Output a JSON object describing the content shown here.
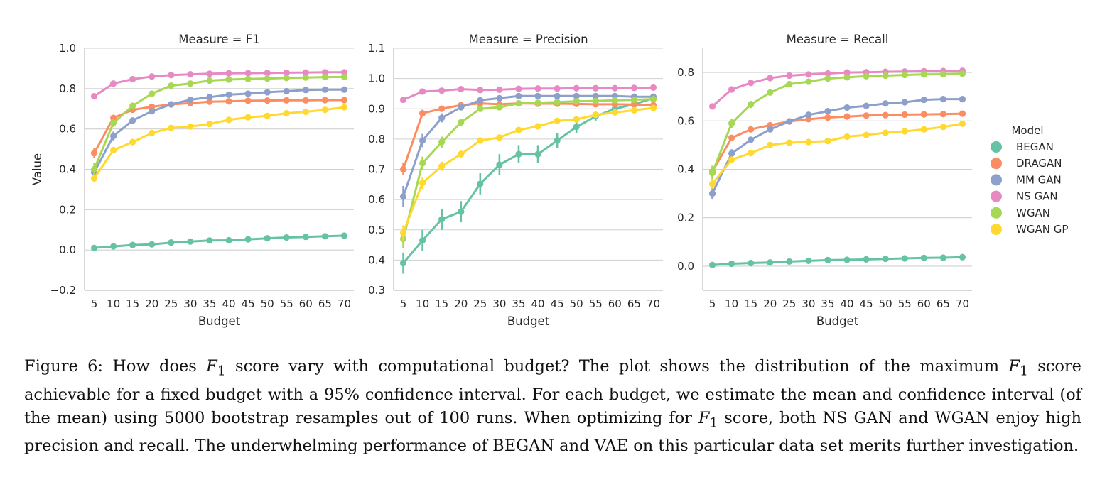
{
  "chart_data": {
    "type": "line",
    "title": "",
    "xlabel": "Budget",
    "ylabel": "Value",
    "categories": [
      5,
      10,
      15,
      20,
      25,
      30,
      35,
      40,
      45,
      50,
      55,
      60,
      65,
      70
    ],
    "legend": {
      "title": "Model",
      "placement": "right",
      "entries": [
        "BEGAN",
        "DRAGAN",
        "MM GAN",
        "NS GAN",
        "WGAN",
        "WGAN GP"
      ]
    },
    "colors": {
      "BEGAN": "#66c2a5",
      "DRAGAN": "#fc8d62",
      "MM GAN": "#8da0cb",
      "NS GAN": "#e78ac3",
      "WGAN": "#a6d854",
      "WGAN GP": "#ffd92f"
    },
    "panels": [
      {
        "title": "Measure = F1",
        "ylim": [
          -0.2,
          1.0
        ],
        "yticks": [
          "−0.2",
          "0.0",
          "0.2",
          "0.4",
          "0.6",
          "0.8",
          "1.0"
        ],
        "yticks_values": [
          -0.2,
          0.0,
          0.2,
          0.4,
          0.6,
          0.8,
          1.0
        ],
        "show_ylabel": true,
        "series": [
          {
            "name": "BEGAN",
            "values": [
              0.01,
              0.018,
              0.025,
              0.028,
              0.037,
              0.042,
              0.047,
              0.048,
              0.053,
              0.058,
              0.062,
              0.065,
              0.068,
              0.071
            ],
            "err": [
              0.005,
              0.005,
              0.005,
              0.005,
              0.005,
              0.005,
              0.005,
              0.005,
              0.005,
              0.005,
              0.005,
              0.005,
              0.005,
              0.005
            ]
          },
          {
            "name": "DRAGAN",
            "values": [
              0.48,
              0.655,
              0.695,
              0.71,
              0.722,
              0.728,
              0.735,
              0.737,
              0.74,
              0.741,
              0.742,
              0.742,
              0.743,
              0.743
            ],
            "err": [
              0.025,
              0.012,
              0.008,
              0.006,
              0.005,
              0.005,
              0.004,
              0.004,
              0.004,
              0.003,
              0.003,
              0.003,
              0.003,
              0.003
            ]
          },
          {
            "name": "MM GAN",
            "values": [
              0.385,
              0.565,
              0.642,
              0.688,
              0.722,
              0.745,
              0.758,
              0.77,
              0.775,
              0.782,
              0.787,
              0.793,
              0.795,
              0.795
            ],
            "err": [
              0.03,
              0.022,
              0.015,
              0.01,
              0.008,
              0.006,
              0.005,
              0.005,
              0.004,
              0.004,
              0.004,
              0.003,
              0.003,
              0.003
            ]
          },
          {
            "name": "NS GAN",
            "values": [
              0.762,
              0.825,
              0.847,
              0.86,
              0.867,
              0.871,
              0.874,
              0.876,
              0.877,
              0.878,
              0.879,
              0.88,
              0.881,
              0.881
            ],
            "err": [
              0.01,
              0.006,
              0.004,
              0.003,
              0.003,
              0.002,
              0.002,
              0.002,
              0.002,
              0.002,
              0.002,
              0.002,
              0.002,
              0.002
            ]
          },
          {
            "name": "WGAN",
            "values": [
              0.4,
              0.63,
              0.715,
              0.775,
              0.815,
              0.825,
              0.84,
              0.845,
              0.848,
              0.85,
              0.853,
              0.855,
              0.857,
              0.858
            ],
            "err": [
              0.03,
              0.02,
              0.015,
              0.01,
              0.008,
              0.006,
              0.005,
              0.005,
              0.004,
              0.004,
              0.004,
              0.003,
              0.003,
              0.003
            ]
          },
          {
            "name": "WGAN GP",
            "values": [
              0.355,
              0.495,
              0.535,
              0.58,
              0.605,
              0.612,
              0.625,
              0.645,
              0.658,
              0.665,
              0.678,
              0.685,
              0.695,
              0.708
            ],
            "err": [
              0.02,
              0.015,
              0.012,
              0.01,
              0.008,
              0.008,
              0.007,
              0.007,
              0.006,
              0.006,
              0.006,
              0.005,
              0.005,
              0.005
            ]
          }
        ]
      },
      {
        "title": "Measure = Precision",
        "ylim": [
          0.3,
          1.1
        ],
        "yticks": [
          "0.3",
          "0.4",
          "0.5",
          "0.6",
          "0.7",
          "0.8",
          "0.9",
          "1.0",
          "1.1"
        ],
        "yticks_values": [
          0.3,
          0.4,
          0.5,
          0.6,
          0.7,
          0.8,
          0.9,
          1.0,
          1.1
        ],
        "show_ylabel": false,
        "series": [
          {
            "name": "BEGAN",
            "values": [
              0.39,
              0.465,
              0.535,
              0.56,
              0.652,
              0.715,
              0.75,
              0.75,
              0.795,
              0.84,
              0.875,
              0.9,
              0.915,
              0.935
            ],
            "err": [
              0.035,
              0.035,
              0.035,
              0.035,
              0.035,
              0.035,
              0.03,
              0.03,
              0.025,
              0.02,
              0.015,
              0.012,
              0.01,
              0.01
            ]
          },
          {
            "name": "DRAGAN",
            "values": [
              0.7,
              0.885,
              0.9,
              0.912,
              0.918,
              0.915,
              0.918,
              0.917,
              0.917,
              0.916,
              0.915,
              0.915,
              0.914,
              0.912
            ],
            "err": [
              0.02,
              0.012,
              0.008,
              0.006,
              0.005,
              0.004,
              0.004,
              0.004,
              0.003,
              0.003,
              0.003,
              0.003,
              0.003,
              0.003
            ]
          },
          {
            "name": "MM GAN",
            "values": [
              0.61,
              0.795,
              0.87,
              0.905,
              0.928,
              0.935,
              0.942,
              0.942,
              0.942,
              0.942,
              0.942,
              0.942,
              0.94,
              0.94
            ],
            "err": [
              0.035,
              0.022,
              0.015,
              0.01,
              0.008,
              0.006,
              0.005,
              0.005,
              0.004,
              0.004,
              0.004,
              0.003,
              0.003,
              0.003
            ]
          },
          {
            "name": "NS GAN",
            "values": [
              0.93,
              0.957,
              0.96,
              0.965,
              0.962,
              0.963,
              0.966,
              0.967,
              0.967,
              0.968,
              0.968,
              0.968,
              0.969,
              0.97
            ],
            "err": [
              0.01,
              0.006,
              0.004,
              0.003,
              0.003,
              0.002,
              0.002,
              0.002,
              0.002,
              0.002,
              0.002,
              0.002,
              0.002,
              0.002
            ]
          },
          {
            "name": "WGAN",
            "values": [
              0.47,
              0.72,
              0.79,
              0.855,
              0.9,
              0.905,
              0.918,
              0.92,
              0.922,
              0.925,
              0.926,
              0.928,
              0.93,
              0.932
            ],
            "err": [
              0.03,
              0.022,
              0.018,
              0.012,
              0.008,
              0.006,
              0.005,
              0.005,
              0.004,
              0.004,
              0.004,
              0.003,
              0.003,
              0.003
            ]
          },
          {
            "name": "WGAN GP",
            "values": [
              0.49,
              0.655,
              0.71,
              0.75,
              0.795,
              0.805,
              0.83,
              0.842,
              0.86,
              0.865,
              0.88,
              0.888,
              0.895,
              0.903
            ],
            "err": [
              0.025,
              0.02,
              0.015,
              0.012,
              0.01,
              0.009,
              0.008,
              0.007,
              0.007,
              0.006,
              0.006,
              0.005,
              0.005,
              0.005
            ]
          }
        ]
      },
      {
        "title": "Measure = Recall",
        "ylim": [
          -0.1,
          0.9
        ],
        "yticks": [
          "0.0",
          "0.2",
          "0.4",
          "0.6",
          "0.8"
        ],
        "yticks_values": [
          0.0,
          0.2,
          0.4,
          0.6,
          0.8
        ],
        "show_ylabel": false,
        "series": [
          {
            "name": "BEGAN",
            "values": [
              0.005,
              0.01,
              0.013,
              0.015,
              0.019,
              0.022,
              0.025,
              0.026,
              0.028,
              0.03,
              0.032,
              0.034,
              0.035,
              0.037
            ],
            "err": [
              0.004,
              0.004,
              0.004,
              0.004,
              0.004,
              0.004,
              0.004,
              0.004,
              0.004,
              0.004,
              0.004,
              0.004,
              0.004,
              0.004
            ]
          },
          {
            "name": "DRAGAN",
            "values": [
              0.39,
              0.53,
              0.565,
              0.582,
              0.598,
              0.607,
              0.614,
              0.618,
              0.622,
              0.624,
              0.626,
              0.627,
              0.628,
              0.63
            ],
            "err": [
              0.02,
              0.012,
              0.008,
              0.006,
              0.005,
              0.005,
              0.004,
              0.004,
              0.004,
              0.003,
              0.003,
              0.003,
              0.003,
              0.003
            ]
          },
          {
            "name": "MM GAN",
            "values": [
              0.3,
              0.465,
              0.522,
              0.565,
              0.598,
              0.625,
              0.64,
              0.655,
              0.662,
              0.672,
              0.677,
              0.687,
              0.69,
              0.69
            ],
            "err": [
              0.025,
              0.018,
              0.012,
              0.01,
              0.008,
              0.006,
              0.005,
              0.005,
              0.004,
              0.004,
              0.004,
              0.003,
              0.003,
              0.003
            ]
          },
          {
            "name": "NS GAN",
            "values": [
              0.66,
              0.73,
              0.757,
              0.777,
              0.787,
              0.792,
              0.796,
              0.8,
              0.801,
              0.803,
              0.804,
              0.805,
              0.806,
              0.807
            ],
            "err": [
              0.01,
              0.008,
              0.005,
              0.004,
              0.003,
              0.003,
              0.002,
              0.002,
              0.002,
              0.002,
              0.002,
              0.002,
              0.002,
              0.002
            ]
          },
          {
            "name": "WGAN",
            "values": [
              0.385,
              0.59,
              0.668,
              0.717,
              0.752,
              0.762,
              0.775,
              0.78,
              0.785,
              0.787,
              0.79,
              0.792,
              0.793,
              0.795
            ],
            "err": [
              0.03,
              0.02,
              0.015,
              0.01,
              0.008,
              0.006,
              0.005,
              0.005,
              0.004,
              0.004,
              0.004,
              0.003,
              0.003,
              0.003
            ]
          },
          {
            "name": "WGAN GP",
            "values": [
              0.34,
              0.44,
              0.467,
              0.5,
              0.51,
              0.513,
              0.517,
              0.535,
              0.542,
              0.551,
              0.557,
              0.565,
              0.575,
              0.588
            ],
            "err": [
              0.02,
              0.012,
              0.01,
              0.008,
              0.006,
              0.006,
              0.005,
              0.005,
              0.005,
              0.005,
              0.004,
              0.004,
              0.004,
              0.004
            ]
          }
        ]
      }
    ]
  },
  "caption": {
    "label": "Figure 6:",
    "part1": "How does ",
    "f1_a": "F",
    "sub_a": "1",
    "part2": " score vary with computational budget? The plot shows the distribution of the maximum ",
    "f1_b": "F",
    "sub_b": "1",
    "part3": " score achievable for a fixed budget with a 95% confidence interval. For each budget, we estimate the mean and confidence interval (of the mean) using 5000 bootstrap resamples out of 100 runs. When optimizing for ",
    "f1_c": "F",
    "sub_c": "1",
    "part4": " score, both ",
    "nsgan": "NS GAN",
    "part5": " and ",
    "wgan": "WGAN",
    "part6": " enjoy high precision and recall. The underwhelming performance of ",
    "began": "BEGAN",
    "part7": " and ",
    "vae": "VAE",
    "part8": " on this particular data set merits further investigation."
  }
}
